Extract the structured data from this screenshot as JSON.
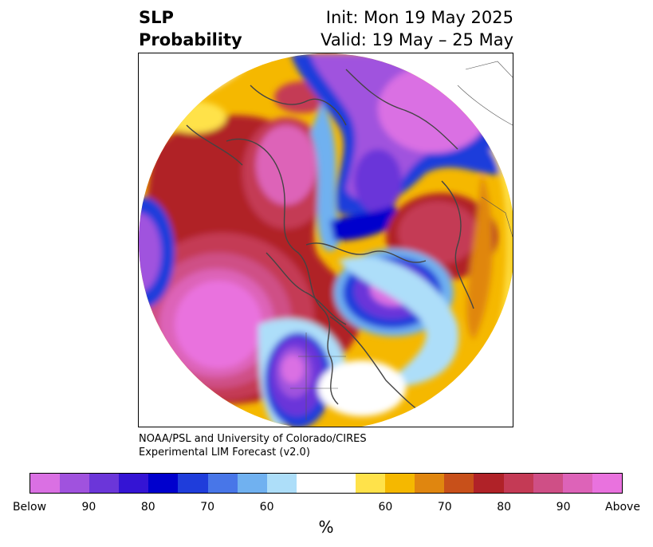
{
  "title": {
    "left_line1": "SLP",
    "left_line2": "Probability",
    "right_line1": "Init: Mon 19 May 2025",
    "right_line2": "Valid: 19 May – 25 May"
  },
  "credit": {
    "line1": "NOAA/PSL and University of Colorado/CIRES",
    "line2": "Experimental LIM Forecast (v2.0)"
  },
  "colorbar": {
    "colors": [
      "#da70e3",
      "#a052de",
      "#6b36d9",
      "#3414d4",
      "#0000cd",
      "#1f3ddb",
      "#4876e8",
      "#70b1f0",
      "#addef9",
      "#ffffff",
      "#ffffff",
      "#ffe24a",
      "#f5b800",
      "#e0860f",
      "#c8501a",
      "#b02228",
      "#c43a55",
      "#cf4f86",
      "#dd63b8",
      "#e972de"
    ],
    "tick_labels": [
      "Below",
      "90",
      "80",
      "70",
      "60",
      "60",
      "70",
      "80",
      "90",
      "Above"
    ],
    "unit": "%"
  },
  "map": {
    "projection": "north-polar-stereographic",
    "field": "SLP probability",
    "features": [
      {
        "name": "north-pacific-above-center",
        "category": "Above",
        "shade": "#e972de"
      },
      {
        "name": "north-america-below-center",
        "category": "Below",
        "shade": "#a052de"
      },
      {
        "name": "north-atlantic-below-center",
        "category": "Below",
        "shade": "#6b36d9"
      },
      {
        "name": "siberia-above-center",
        "category": "Above",
        "shade": "#dd63b8"
      },
      {
        "name": "europe-above-center",
        "category": "Above",
        "shade": "#c43a55"
      },
      {
        "name": "arctic-below-center",
        "category": "Below",
        "shade": "#a052de"
      }
    ]
  }
}
